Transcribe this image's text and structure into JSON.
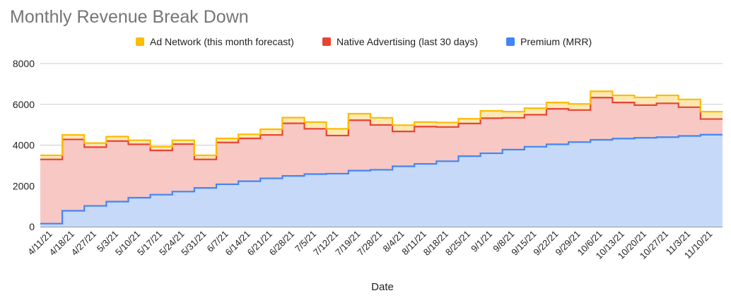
{
  "chart_data": {
    "type": "area",
    "stacked": true,
    "step": true,
    "title": "Monthly Revenue Break Down",
    "xlabel": "Date",
    "ylabel": "",
    "ylim": [
      0,
      8000
    ],
    "yticks": [
      0,
      2000,
      4000,
      6000,
      8000
    ],
    "grid": true,
    "legend_position": "top",
    "x_tick_labels": [
      "4/11/21",
      "4/18/21",
      "4/27/21",
      "5/3/21",
      "5/10/21",
      "5/17/21",
      "5/24/21",
      "5/31/21",
      "6/7/21",
      "6/14/21",
      "6/21/21",
      "6/28/21",
      "7/5/21",
      "7/12/21",
      "7/19/21",
      "7/28/21",
      "8/4/21",
      "8/11/21",
      "8/18/21",
      "8/25/21",
      "9/1/21",
      "9/8/21",
      "9/15/21",
      "9/22/21",
      "9/29/21",
      "10/6/21",
      "10/13/21",
      "10/20/21",
      "10/27/21",
      "11/3/21",
      "11/10/21"
    ],
    "series": [
      {
        "name": "Premium (MRR)",
        "color": "#4285f4",
        "fill": "#c6d9f8",
        "values": [
          150,
          780,
          1020,
          1230,
          1420,
          1570,
          1720,
          1900,
          2080,
          2230,
          2370,
          2490,
          2580,
          2600,
          2750,
          2790,
          2960,
          3080,
          3210,
          3460,
          3600,
          3780,
          3920,
          4040,
          4150,
          4260,
          4320,
          4360,
          4390,
          4450,
          4510
        ]
      },
      {
        "name": "Native Advertising (last 30 days)",
        "color": "#ea4335",
        "fill": "#f7c8c4",
        "values": [
          3150,
          3500,
          2880,
          2970,
          2620,
          2170,
          2330,
          1400,
          2050,
          2100,
          2130,
          2580,
          2220,
          1870,
          2470,
          2200,
          1710,
          1830,
          1680,
          1600,
          1720,
          1560,
          1570,
          1740,
          1570,
          2070,
          1770,
          1600,
          1660,
          1410,
          770
        ]
      },
      {
        "name": "Ad Network (this month forecast)",
        "color": "#fbbc04",
        "fill": "#fce8b2",
        "values": [
          200,
          220,
          200,
          220,
          200,
          180,
          190,
          200,
          200,
          200,
          280,
          280,
          330,
          330,
          320,
          350,
          310,
          220,
          220,
          230,
          360,
          300,
          320,
          310,
          300,
          310,
          350,
          380,
          390,
          380,
          360
        ]
      }
    ]
  }
}
